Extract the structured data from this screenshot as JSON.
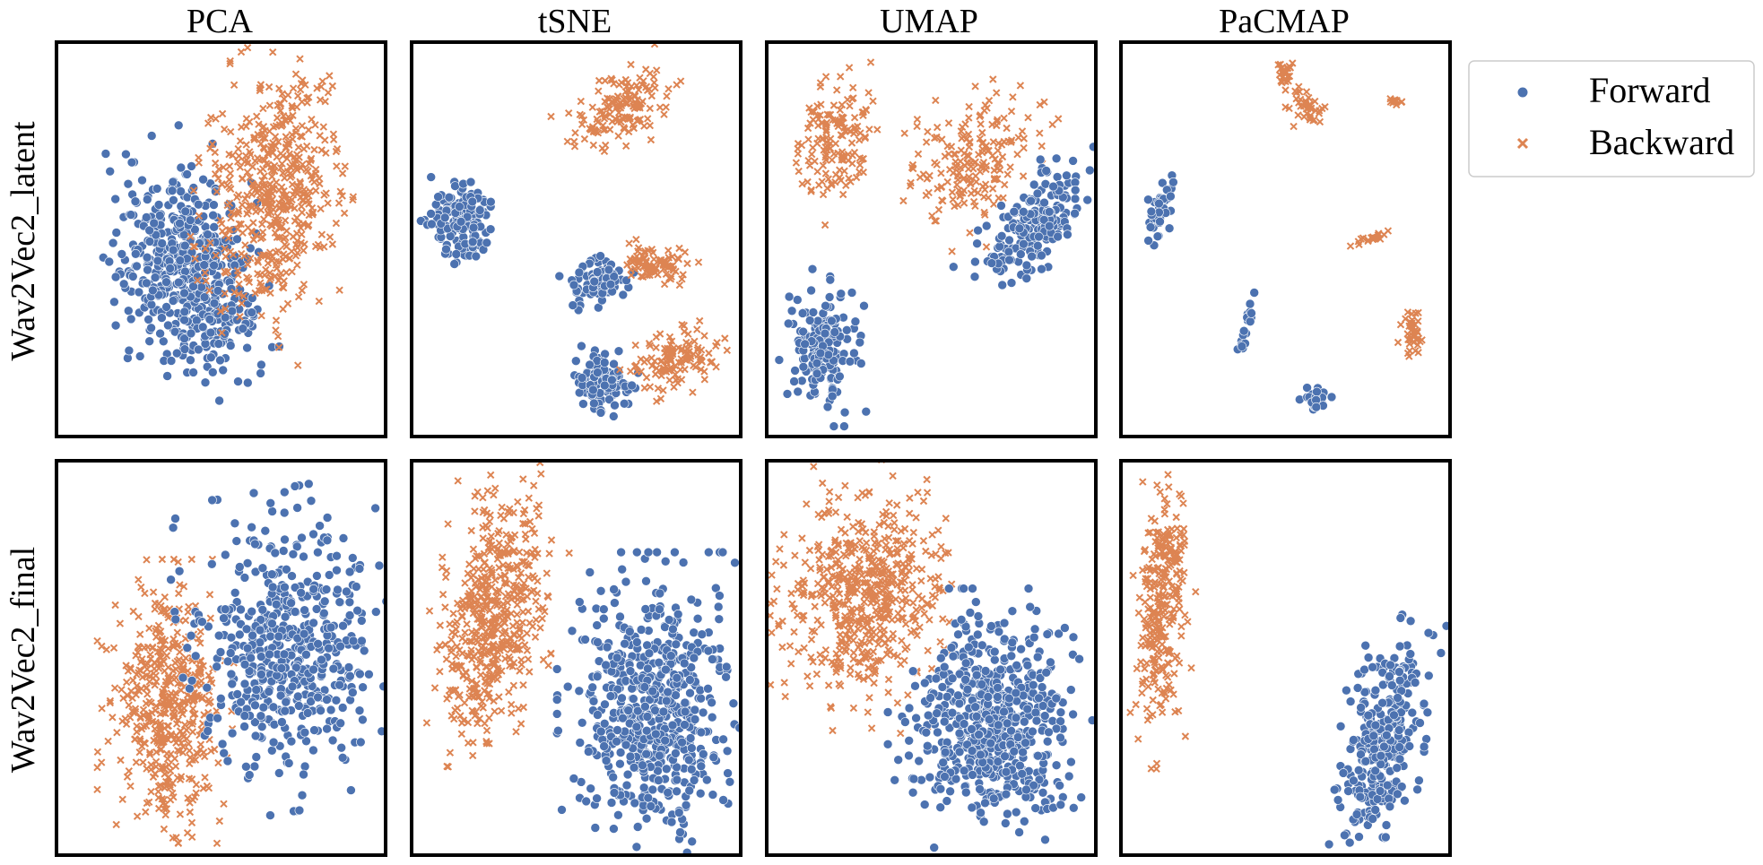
{
  "colors": {
    "forward": "#4c72b0",
    "backward": "#dd8452",
    "frame": "#000000",
    "legend_border": "#cccccc"
  },
  "columns": [
    "PCA",
    "tSNE",
    "UMAP",
    "PaCMAP"
  ],
  "rows": [
    "Wav2Vec2_latent",
    "Wav2Vec2_final"
  ],
  "legend": {
    "forward": "Forward",
    "backward": "Backward",
    "placement": "top-right outside"
  },
  "chart_data": {
    "type": "scatter",
    "description": "Small-multiple scatter plots of embeddings, colored by direction. Axes unlabeled; coordinates are normalized 0-100 within each panel.",
    "series": [
      {
        "name": "Forward",
        "marker": "circle"
      },
      {
        "name": "Backward",
        "marker": "x"
      }
    ],
    "xlim": [
      0,
      100
    ],
    "ylim": [
      0,
      100
    ],
    "panels": [
      {
        "row": "Wav2Vec2_latent",
        "method": "PCA",
        "clusters": [
          {
            "series": "Forward",
            "cx": 40,
            "cy": 58,
            "rx": 21,
            "ry": 30,
            "rot": -18,
            "n": 520
          },
          {
            "series": "Backward",
            "cx": 66,
            "cy": 38,
            "rx": 20,
            "ry": 35,
            "rot": 10,
            "n": 520
          }
        ]
      },
      {
        "row": "Wav2Vec2_latent",
        "method": "tSNE",
        "clusters": [
          {
            "series": "Forward",
            "cx": 16,
            "cy": 46,
            "rx": 11,
            "ry": 11,
            "rot": 0,
            "n": 140
          },
          {
            "series": "Forward",
            "cx": 57,
            "cy": 61,
            "rx": 9,
            "ry": 6,
            "rot": -20,
            "n": 90
          },
          {
            "series": "Forward",
            "cx": 58,
            "cy": 86,
            "rx": 10,
            "ry": 7,
            "rot": 10,
            "n": 110
          },
          {
            "series": "Backward",
            "cx": 64,
            "cy": 17,
            "rx": 17,
            "ry": 9,
            "rot": -25,
            "n": 150
          },
          {
            "series": "Backward",
            "cx": 74,
            "cy": 56,
            "rx": 11,
            "ry": 5,
            "rot": 0,
            "n": 90
          },
          {
            "series": "Backward",
            "cx": 80,
            "cy": 81,
            "rx": 14,
            "ry": 8,
            "rot": -10,
            "n": 120
          }
        ]
      },
      {
        "row": "Wav2Vec2_latent",
        "method": "UMAP",
        "clusters": [
          {
            "series": "Backward",
            "cx": 21,
            "cy": 25,
            "rx": 12,
            "ry": 18,
            "rot": 10,
            "n": 150
          },
          {
            "series": "Backward",
            "cx": 63,
            "cy": 30,
            "rx": 22,
            "ry": 16,
            "rot": -40,
            "n": 190
          },
          {
            "series": "Forward",
            "cx": 82,
            "cy": 46,
            "rx": 22,
            "ry": 10,
            "rot": -40,
            "n": 190
          },
          {
            "series": "Forward",
            "cx": 17,
            "cy": 77,
            "rx": 11,
            "ry": 17,
            "rot": 0,
            "n": 160
          }
        ]
      },
      {
        "row": "Wav2Vec2_latent",
        "method": "PaCMAP",
        "clusters": [
          {
            "series": "Backward",
            "cx": 50,
            "cy": 8,
            "rx": 3,
            "ry": 3,
            "rot": 30,
            "n": 25
          },
          {
            "series": "Backward",
            "cx": 56,
            "cy": 16,
            "rx": 5,
            "ry": 5,
            "rot": 0,
            "n": 40
          },
          {
            "series": "Backward",
            "cx": 83,
            "cy": 15,
            "rx": 3,
            "ry": 1,
            "rot": 0,
            "n": 10
          },
          {
            "series": "Forward",
            "cx": 12,
            "cy": 43,
            "rx": 4,
            "ry": 9,
            "rot": 20,
            "n": 50
          },
          {
            "series": "Backward",
            "cx": 75,
            "cy": 50,
            "rx": 8,
            "ry": 1,
            "rot": -15,
            "n": 20
          },
          {
            "series": "Forward",
            "cx": 38,
            "cy": 72,
            "rx": 1,
            "ry": 8,
            "rot": 15,
            "n": 20
          },
          {
            "series": "Backward",
            "cx": 89,
            "cy": 74,
            "rx": 4,
            "ry": 6,
            "rot": 0,
            "n": 40
          },
          {
            "series": "Forward",
            "cx": 59,
            "cy": 91,
            "rx": 5,
            "ry": 4,
            "rot": 0,
            "n": 35
          }
        ]
      },
      {
        "row": "Wav2Vec2_final",
        "method": "PCA",
        "clusters": [
          {
            "series": "Backward",
            "cx": 34,
            "cy": 61,
            "rx": 18,
            "ry": 30,
            "rot": 0,
            "n": 480
          },
          {
            "series": "Forward",
            "cx": 70,
            "cy": 48,
            "rx": 27,
            "ry": 34,
            "rot": -8,
            "n": 520
          }
        ]
      },
      {
        "row": "Wav2Vec2_final",
        "method": "tSNE",
        "clusters": [
          {
            "series": "Backward",
            "cx": 25,
            "cy": 39,
            "rx": 16,
            "ry": 34,
            "rot": 14,
            "n": 520
          },
          {
            "series": "Forward",
            "cx": 73,
            "cy": 64,
            "rx": 24,
            "ry": 34,
            "rot": 0,
            "n": 580
          }
        ]
      },
      {
        "row": "Wav2Vec2_final",
        "method": "UMAP",
        "clusters": [
          {
            "series": "Backward",
            "cx": 30,
            "cy": 35,
            "rx": 24,
            "ry": 29,
            "rot": 20,
            "n": 560
          },
          {
            "series": "Forward",
            "cx": 68,
            "cy": 66,
            "rx": 26,
            "ry": 28,
            "rot": 0,
            "n": 600
          }
        ]
      },
      {
        "row": "Wav2Vec2_final",
        "method": "PaCMAP",
        "clusters": [
          {
            "series": "Backward",
            "cx": 13,
            "cy": 35,
            "rx": 8,
            "ry": 36,
            "rot": 3,
            "n": 280
          },
          {
            "series": "Forward",
            "cx": 79,
            "cy": 72,
            "rx": 11,
            "ry": 28,
            "rot": 12,
            "n": 330
          }
        ]
      }
    ]
  }
}
